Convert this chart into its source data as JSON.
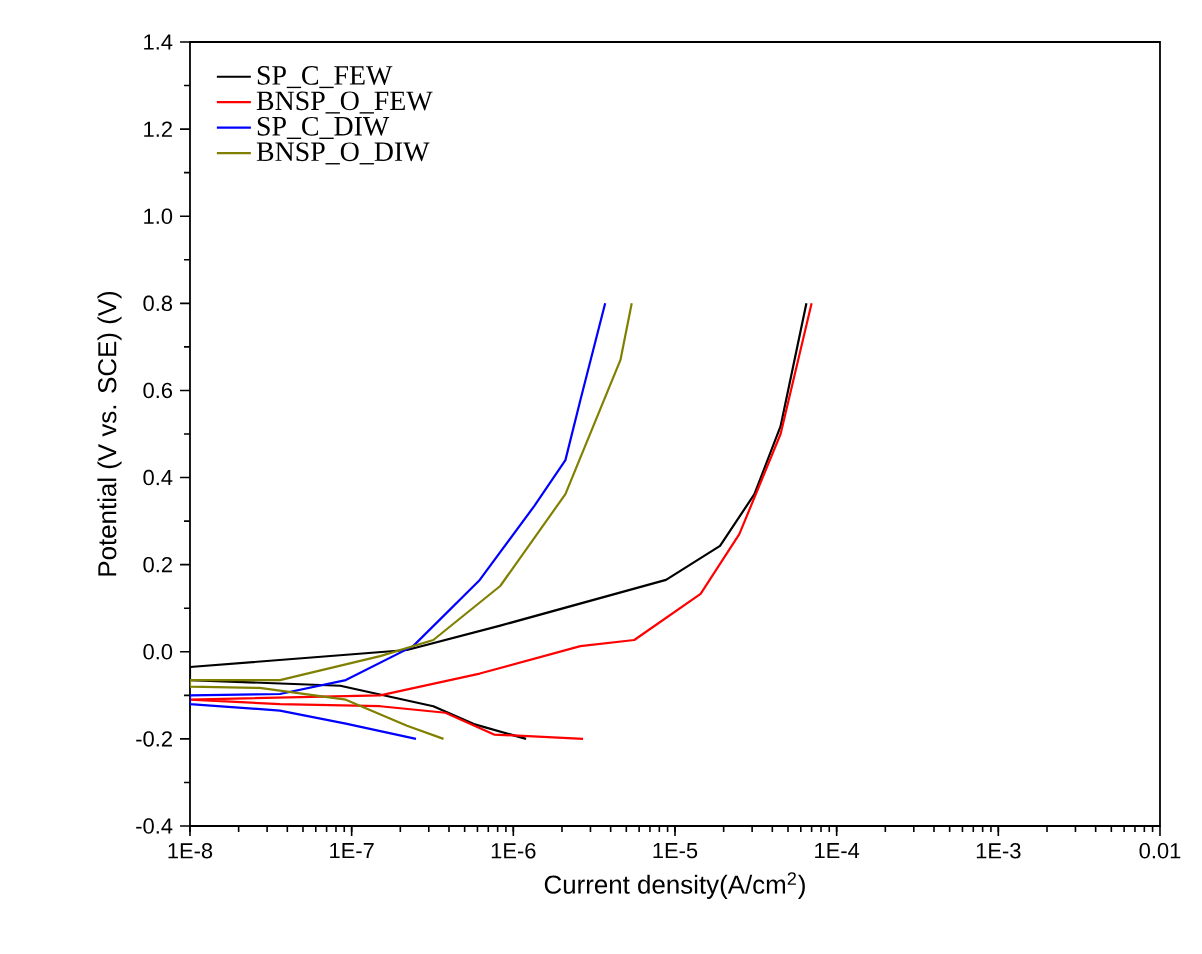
{
  "chart_data": {
    "type": "line",
    "xlabel": "Current density(A/cm$^{2}$)",
    "ylabel": "Potential (V vs. SCE) (V)",
    "log": "x",
    "xlim": [
      1e-08,
      0.01
    ],
    "xticks": [
      {
        "value": 1e-08,
        "label": "1E-8"
      },
      {
        "value": 1e-07,
        "label": "1E-7"
      },
      {
        "value": 1e-06,
        "label": "1E-6"
      },
      {
        "value": 1e-05,
        "label": "1E-5"
      },
      {
        "value": 0.0001,
        "label": "1E-4"
      },
      {
        "value": 0.001,
        "label": "1E-3"
      },
      0.01
    ],
    "ylim": [
      -0.4,
      1.4
    ],
    "yticks": [
      -0.4,
      -0.2,
      {
        "value": 0,
        "label": "0.0"
      },
      0.2,
      0.4,
      0.6,
      0.8,
      {
        "value": 1,
        "label": "1.0"
      },
      1.2,
      1.4
    ],
    "legend": "top left",
    "grid": false,
    "series": [
      {
        "name": "SP_C_FEW",
        "color": "#000000",
        "x": [
          1.2e-06,
          5.7e-07,
          3.2e-07,
          8.5e-08,
          1e-08,
          1e-08,
          2.2e-07,
          8.3e-07,
          8.8e-06,
          1.9e-05,
          3.1e-05,
          4.5e-05,
          6.5e-05
        ],
        "values": [
          -0.2,
          -0.166,
          -0.125,
          -0.078,
          -0.065,
          -0.035,
          0.004,
          0.06,
          0.165,
          0.243,
          0.362,
          0.518,
          0.8
        ]
      },
      {
        "name": "BNSP_O_FEW",
        "color": "#ff0000",
        "x": [
          2.7e-06,
          7.6e-07,
          3.8e-07,
          1.5e-07,
          3.6e-08,
          1e-08,
          1.5e-07,
          6.2e-07,
          2.6e-06,
          5.6e-06,
          1.44e-05,
          2.5e-05,
          4.5e-05,
          7e-05
        ],
        "values": [
          -0.2,
          -0.19,
          -0.14,
          -0.125,
          -0.12,
          -0.11,
          -0.1,
          -0.05,
          0.013,
          0.027,
          0.133,
          0.27,
          0.5,
          0.8
        ]
      },
      {
        "name": "SP_C_DIW",
        "color": "#0000ff",
        "x": [
          2.5e-07,
          9.2e-08,
          3.6e-08,
          1e-08,
          1e-08,
          3.6e-08,
          9.2e-08,
          2.4e-07,
          6.2e-07,
          1.35e-06,
          2.1e-06,
          2.6e-06,
          3.7e-06
        ],
        "values": [
          -0.2,
          -0.165,
          -0.135,
          -0.12,
          -0.1,
          -0.097,
          -0.065,
          0.013,
          0.165,
          0.335,
          0.44,
          0.578,
          0.8
        ]
      },
      {
        "name": "BNSP_O_DIW",
        "color": "#808000",
        "x": [
          3.7e-07,
          2.2e-07,
          9.2e-08,
          2.7e-08,
          1e-08,
          1e-08,
          3.6e-08,
          1.5e-07,
          3.2e-07,
          8.3e-07,
          2.1e-06,
          4.6e-06,
          5.4e-06
        ],
        "values": [
          -0.2,
          -0.17,
          -0.11,
          -0.083,
          -0.08,
          -0.065,
          -0.065,
          -0.01,
          0.027,
          0.151,
          0.362,
          0.67,
          0.8
        ]
      }
    ]
  }
}
